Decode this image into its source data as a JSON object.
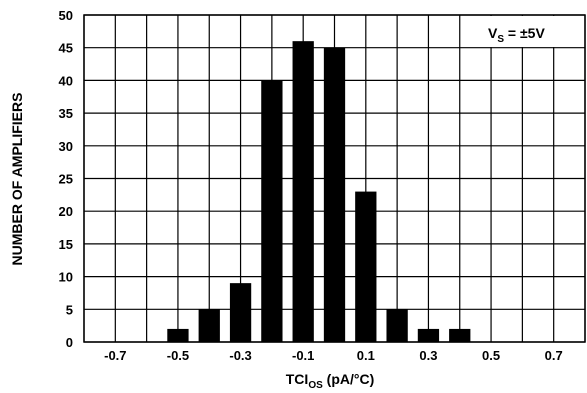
{
  "chart_data": {
    "type": "bar",
    "x": [
      -0.5,
      -0.4,
      -0.3,
      -0.2,
      -0.1,
      0.0,
      0.1,
      0.2,
      0.3,
      0.4
    ],
    "values": [
      2,
      5,
      9,
      40,
      46,
      45,
      23,
      5,
      2,
      2
    ],
    "xlim": [
      -0.8,
      0.8
    ],
    "ylim": [
      0,
      50
    ],
    "x_ticks": [
      -0.7,
      -0.5,
      -0.3,
      -0.1,
      0.1,
      0.3,
      0.5,
      0.7
    ],
    "x_tick_labels": [
      "-0.7",
      "-0.5",
      "-0.3",
      "-0.1",
      "0.1",
      "0.3",
      "0.5",
      "0.7"
    ],
    "y_ticks": [
      0,
      5,
      10,
      15,
      20,
      25,
      30,
      35,
      40,
      45,
      50
    ],
    "y_tick_labels": [
      "0",
      "5",
      "10",
      "15",
      "20",
      "25",
      "30",
      "35",
      "40",
      "45",
      "50"
    ],
    "ylabel": "NUMBER OF AMPLIFIERS",
    "xlabel_main": "TCI",
    "xlabel_sub": "OS",
    "xlabel_units": " (pA/°C)",
    "legend_main": "V",
    "legend_sub": "S",
    "legend_value": " = ±5V",
    "grid": true,
    "bar_color": "#000000",
    "grid_color": "#000000"
  }
}
